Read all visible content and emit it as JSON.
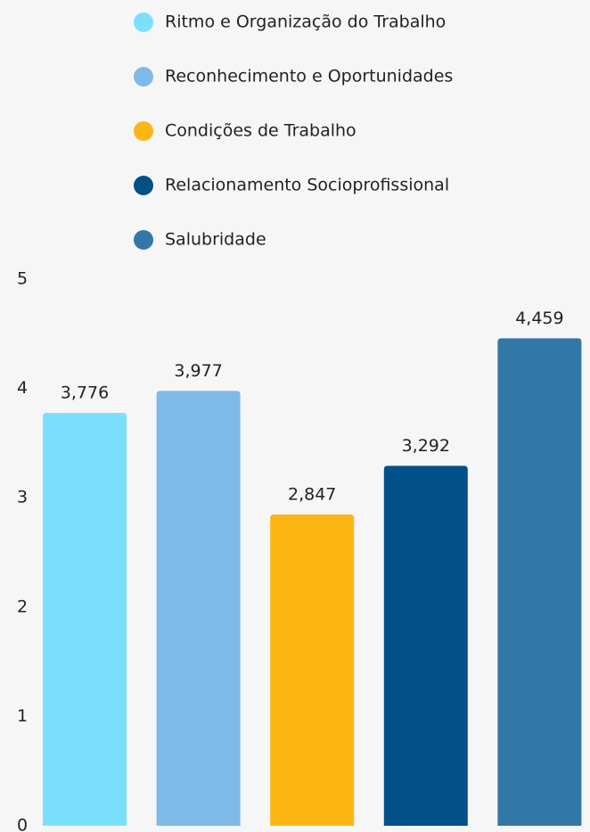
{
  "chart_data": {
    "type": "bar",
    "series": [
      {
        "name": "Ritmo e Organização do Trabalho",
        "color": "#7be0fc",
        "values": [
          3.776
        ],
        "value_labels": [
          "3,776"
        ]
      },
      {
        "name": "Reconhecimento e Oportunidades",
        "color": "#7fb9e8",
        "values": [
          3.977
        ],
        "value_labels": [
          "3,977"
        ]
      },
      {
        "name": "Condições de Trabalho",
        "color": "#fcb614",
        "values": [
          2.847
        ],
        "value_labels": [
          "2,847"
        ]
      },
      {
        "name": "Relacionamento Socioprofissional",
        "color": "#02508a",
        "values": [
          3.292
        ],
        "value_labels": [
          "3,292"
        ]
      },
      {
        "name": "Salubridade",
        "color": "#3278a6",
        "values": [
          4.459
        ],
        "value_labels": [
          "4,459"
        ]
      }
    ],
    "ylim": [
      0,
      5
    ],
    "yticks": [
      0,
      1,
      2,
      3,
      4,
      5
    ],
    "grid": false,
    "legend": "top"
  }
}
